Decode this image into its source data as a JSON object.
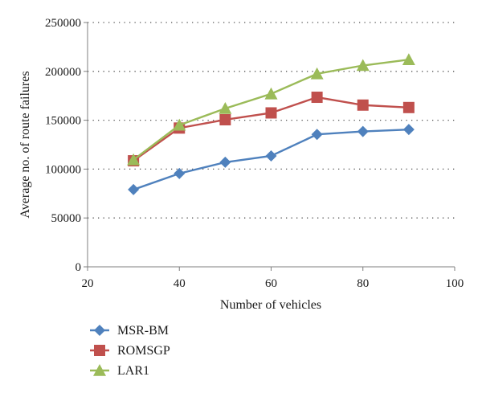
{
  "chart_data": {
    "type": "line",
    "xlabel": "Number of vehicles",
    "ylabel": "Average no. of route failures",
    "xlim": [
      20,
      100
    ],
    "ylim": [
      0,
      250000
    ],
    "xticks": [
      20,
      40,
      60,
      80,
      100
    ],
    "yticks": [
      0,
      50000,
      100000,
      150000,
      200000,
      250000
    ],
    "xtick_labels": [
      "20",
      "40",
      "60",
      "80",
      "100"
    ],
    "ytick_labels": [
      "0",
      "50000",
      "100000",
      "150000",
      "200000",
      "250000"
    ],
    "grid": "horizontal dotted",
    "legend_position": "bottom-left",
    "x": [
      30,
      40,
      50,
      60,
      70,
      80,
      90
    ],
    "series": [
      {
        "name": "MSR-BM",
        "color": "#4f81bd",
        "marker": "diamond",
        "values": [
          79000,
          95500,
          107000,
          113500,
          135500,
          138500,
          140500
        ]
      },
      {
        "name": "ROMSGP",
        "color": "#c0504d",
        "marker": "square",
        "values": [
          108500,
          142000,
          150500,
          157500,
          173500,
          165500,
          163000
        ]
      },
      {
        "name": "LAR1",
        "color": "#9bbb59",
        "marker": "triangle",
        "values": [
          109500,
          145000,
          162000,
          177000,
          197500,
          206000,
          212000
        ]
      }
    ]
  }
}
